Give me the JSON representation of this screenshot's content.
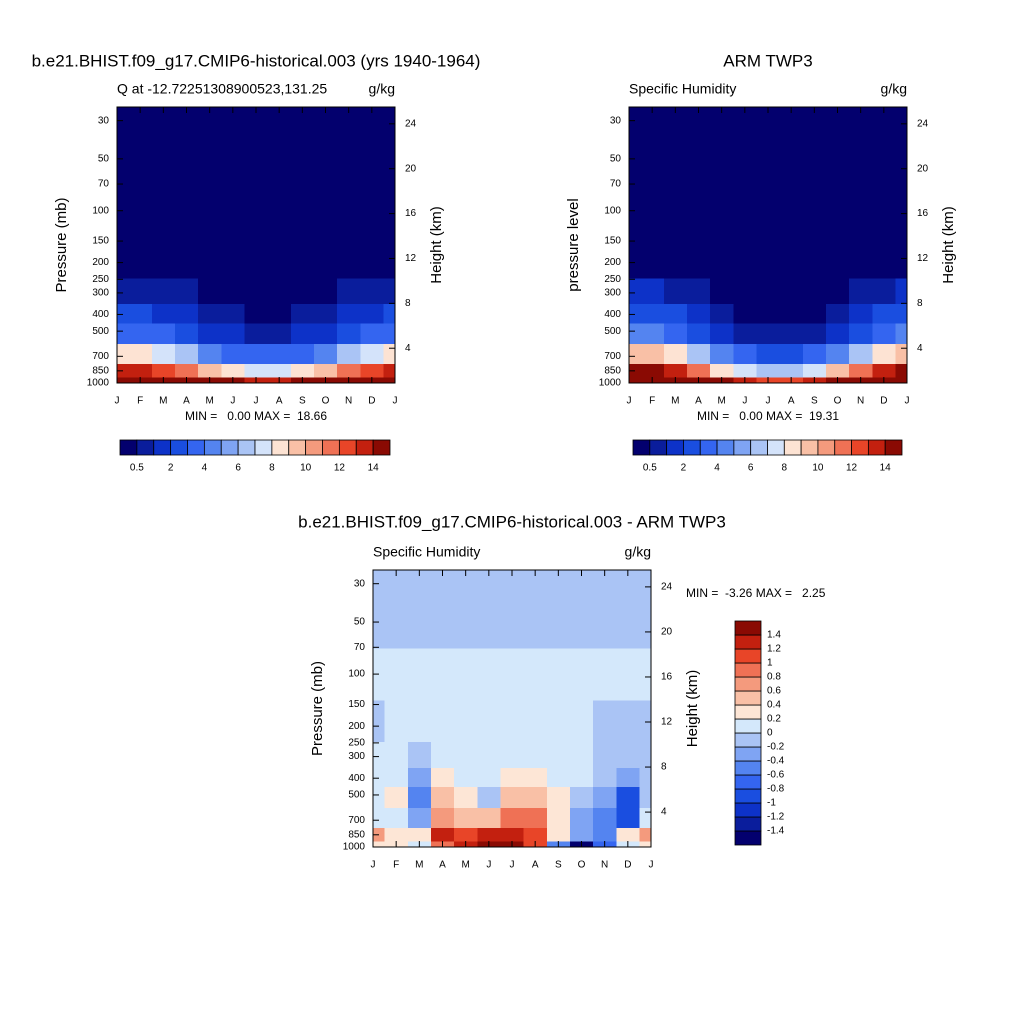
{
  "chart_data": [
    {
      "type": "contour",
      "title": "b.e21.BHIST.f09_g17.CMIP6-historical.003 (yrs 1940-1964)",
      "left_label": "Q at -12.72251308900523,131.25",
      "right_label": "g/kg",
      "ylabel": "Pressure (mb)",
      "y2label": "Height (km)",
      "stats": "MIN =   0.00 MAX =  18.66",
      "categories": [
        "J",
        "F",
        "M",
        "A",
        "M",
        "J",
        "J",
        "A",
        "S",
        "O",
        "N",
        "D",
        "J"
      ],
      "log_y": true,
      "ylim": [
        1000,
        25
      ],
      "yticks": [
        30,
        50,
        70,
        100,
        150,
        200,
        250,
        300,
        400,
        500,
        700,
        850,
        1000
      ],
      "y2lim": [
        0.9,
        25.5
      ],
      "y2ticks": [
        4,
        8,
        12,
        16,
        20,
        24
      ],
      "y": [
        1000,
        850,
        700,
        500,
        400,
        300,
        200,
        100,
        50,
        30
      ],
      "z": [
        [
          17,
          17,
          16.5,
          16,
          15,
          14,
          13.5,
          13.5,
          14,
          15,
          16,
          17,
          17
        ],
        [
          13,
          13,
          12,
          11,
          9,
          8,
          7.5,
          7.5,
          8,
          9.5,
          11,
          12.5,
          13
        ],
        [
          8,
          8,
          7.5,
          6,
          4.5,
          3.5,
          3,
          3,
          3.5,
          4.5,
          6,
          7.5,
          8
        ],
        [
          3.5,
          3.5,
          3.2,
          2.5,
          1.5,
          1,
          0.8,
          0.8,
          1,
          1.5,
          2.5,
          3.2,
          3.5
        ],
        [
          2,
          2,
          1.8,
          1.3,
          0.8,
          0.5,
          0.4,
          0.4,
          0.5,
          0.8,
          1.3,
          1.8,
          2
        ],
        [
          0.9,
          0.9,
          0.8,
          0.6,
          0.4,
          0.25,
          0.2,
          0.2,
          0.25,
          0.35,
          0.6,
          0.8,
          0.9
        ],
        [
          0.15,
          0.15,
          0.15,
          0.1,
          0.1,
          0.08,
          0.06,
          0.06,
          0.08,
          0.1,
          0.1,
          0.15,
          0.15
        ],
        [
          0.01,
          0.01,
          0.01,
          0.01,
          0.01,
          0.01,
          0.01,
          0.01,
          0.01,
          0.01,
          0.01,
          0.01,
          0.01
        ],
        [
          0.01,
          0.01,
          0.01,
          0.01,
          0.01,
          0.01,
          0.01,
          0.01,
          0.01,
          0.01,
          0.01,
          0.01,
          0.01
        ],
        [
          0.01,
          0.01,
          0.01,
          0.01,
          0.01,
          0.01,
          0.01,
          0.01,
          0.01,
          0.01,
          0.01,
          0.01,
          0.01
        ]
      ],
      "colorbar": {
        "orientation": "horizontal",
        "levels": [
          0.5,
          1,
          2,
          3,
          4,
          5,
          6,
          7,
          8,
          9,
          10,
          11,
          12,
          13,
          14
        ],
        "ticks": [
          0.5,
          2,
          4,
          6,
          8,
          10,
          12,
          14
        ],
        "colors": [
          "#03006e",
          "#0a1d9c",
          "#0d32c8",
          "#1a4ee0",
          "#3465f0",
          "#5484f0",
          "#7fa4f3",
          "#aac4f5",
          "#d4e3fa",
          "#fde3d3",
          "#f9c0a6",
          "#f49a7d",
          "#ef7155",
          "#e84528",
          "#c3200f",
          "#8a0a03"
        ]
      }
    },
    {
      "type": "contour",
      "title": "ARM TWP3",
      "left_label": "Specific Humidity",
      "right_label": "g/kg",
      "ylabel": "pressure level",
      "y2label": "Height (km)",
      "stats": "MIN =   0.00 MAX =  19.31",
      "categories": [
        "J",
        "F",
        "M",
        "A",
        "M",
        "J",
        "J",
        "A",
        "S",
        "O",
        "N",
        "D",
        "J"
      ],
      "log_y": true,
      "ylim": [
        1000,
        25
      ],
      "yticks": [
        30,
        50,
        70,
        100,
        150,
        200,
        250,
        300,
        400,
        500,
        700,
        850,
        1000
      ],
      "y2lim": [
        0.9,
        25.5
      ],
      "y2ticks": [
        4,
        8,
        12,
        16,
        20,
        24
      ],
      "y": [
        1000,
        850,
        700,
        500,
        400,
        300,
        200,
        100,
        50,
        30
      ],
      "z": [
        [
          17.5,
          17.5,
          17,
          16,
          14.5,
          13,
          12.5,
          12.5,
          13.5,
          15,
          16.5,
          17.5,
          17.5
        ],
        [
          14,
          14,
          13,
          11,
          8.5,
          7,
          6.5,
          6.5,
          7.5,
          9,
          11,
          13,
          14
        ],
        [
          9,
          9,
          8.5,
          6,
          4,
          3,
          2.5,
          2.5,
          3,
          4,
          6.5,
          8.5,
          9
        ],
        [
          4,
          4,
          3.8,
          2.5,
          1.5,
          0.9,
          0.7,
          0.6,
          0.7,
          1.2,
          2.5,
          3.5,
          4
        ],
        [
          2.2,
          2.2,
          2,
          1.2,
          0.7,
          0.45,
          0.35,
          0.3,
          0.35,
          0.6,
          1.4,
          2,
          2.2
        ],
        [
          1,
          1,
          0.9,
          0.5,
          0.3,
          0.2,
          0.15,
          0.15,
          0.2,
          0.3,
          0.6,
          0.9,
          1
        ],
        [
          0.15,
          0.15,
          0.15,
          0.1,
          0.1,
          0.08,
          0.06,
          0.06,
          0.08,
          0.1,
          0.1,
          0.15,
          0.15
        ],
        [
          0.01,
          0.01,
          0.01,
          0.01,
          0.01,
          0.01,
          0.01,
          0.01,
          0.01,
          0.01,
          0.01,
          0.01,
          0.01
        ],
        [
          0.01,
          0.01,
          0.01,
          0.01,
          0.01,
          0.01,
          0.01,
          0.01,
          0.01,
          0.01,
          0.01,
          0.01,
          0.01
        ],
        [
          0.01,
          0.01,
          0.01,
          0.01,
          0.01,
          0.01,
          0.01,
          0.01,
          0.01,
          0.01,
          0.01,
          0.01,
          0.01
        ]
      ],
      "colorbar": {
        "orientation": "horizontal",
        "levels": [
          0.5,
          1,
          2,
          3,
          4,
          5,
          6,
          7,
          8,
          9,
          10,
          11,
          12,
          13,
          14
        ],
        "ticks": [
          0.5,
          2,
          4,
          6,
          8,
          10,
          12,
          14
        ],
        "colors": [
          "#03006e",
          "#0a1d9c",
          "#0d32c8",
          "#1a4ee0",
          "#3465f0",
          "#5484f0",
          "#7fa4f3",
          "#aac4f5",
          "#d4e3fa",
          "#fde3d3",
          "#f9c0a6",
          "#f49a7d",
          "#ef7155",
          "#e84528",
          "#c3200f",
          "#8a0a03"
        ]
      }
    },
    {
      "type": "contour",
      "title": "b.e21.BHIST.f09_g17.CMIP6-historical.003 - ARM TWP3",
      "left_label": "Specific Humidity",
      "right_label": "g/kg",
      "ylabel": "Pressure (mb)",
      "y2label": "Height (km)",
      "stats": "MIN =  -3.26 MAX =   2.25",
      "categories": [
        "J",
        "F",
        "M",
        "A",
        "M",
        "J",
        "J",
        "A",
        "S",
        "O",
        "N",
        "D",
        "J"
      ],
      "log_y": true,
      "ylim": [
        1000,
        25
      ],
      "yticks": [
        30,
        50,
        70,
        100,
        150,
        200,
        250,
        300,
        400,
        500,
        700,
        850,
        1000
      ],
      "y2lim": [
        0.9,
        25.5
      ],
      "y2ticks": [
        4,
        8,
        12,
        16,
        20,
        24
      ],
      "y": [
        1000,
        850,
        700,
        500,
        400,
        300,
        200,
        100,
        50,
        30
      ],
      "z": [
        [
          0.3,
          0.2,
          0.1,
          0.8,
          1.3,
          1.6,
          1.5,
          1.0,
          -0.5,
          -1.5,
          -0.8,
          0.1,
          0.3
        ],
        [
          0.6,
          0.2,
          0.3,
          1.2,
          1.0,
          1.3,
          1.2,
          1.1,
          0.2,
          -0.4,
          -0.6,
          0.3,
          0.6
        ],
        [
          0.1,
          0.05,
          -0.4,
          0.6,
          0.4,
          0.5,
          0.9,
          0.8,
          0.3,
          -0.3,
          -0.6,
          -0.9,
          0.1
        ],
        [
          0.05,
          0.3,
          -0.6,
          0.5,
          0.3,
          -0.1,
          0.4,
          0.5,
          0.3,
          -0.1,
          -0.4,
          -1.0,
          -0.2
        ],
        [
          0.05,
          0.05,
          -0.3,
          0.3,
          0.1,
          0.05,
          0.2,
          0.2,
          0.1,
          0.05,
          -0.2,
          -0.4,
          -0.1
        ],
        [
          0.05,
          0.05,
          -0.1,
          0.05,
          0.05,
          0.05,
          0.05,
          0.05,
          0.05,
          0.05,
          -0.1,
          -0.2,
          -0.1
        ],
        [
          -0.05,
          0.05,
          0.05,
          0.05,
          0.05,
          0.05,
          0.05,
          0.05,
          0.05,
          0.05,
          -0.05,
          -0.1,
          -0.05
        ],
        [
          0.05,
          0.05,
          0.05,
          0.05,
          0.05,
          0.05,
          0.05,
          0.05,
          0.05,
          0.05,
          0.05,
          0.05,
          0.05
        ],
        [
          -0.05,
          -0.05,
          -0.05,
          -0.05,
          -0.05,
          -0.05,
          -0.05,
          -0.05,
          -0.05,
          -0.05,
          -0.05,
          -0.05,
          -0.05
        ],
        [
          -0.05,
          -0.05,
          -0.05,
          -0.05,
          -0.05,
          -0.05,
          -0.05,
          -0.05,
          -0.05,
          -0.05,
          -0.05,
          -0.05,
          -0.05
        ]
      ],
      "colorbar": {
        "orientation": "vertical",
        "levels": [
          -1.4,
          -1.2,
          -1,
          -0.8,
          -0.6,
          -0.4,
          -0.2,
          0,
          0.2,
          0.4,
          0.6,
          0.8,
          1,
          1.2,
          1.4
        ],
        "ticks": [
          -1.4,
          -1.2,
          -1,
          -0.8,
          -0.6,
          -0.4,
          -0.2,
          0,
          0.2,
          0.4,
          0.6,
          0.8,
          1,
          1.2,
          1.4
        ],
        "colors": [
          "#03006e",
          "#0a1d9c",
          "#0d32c8",
          "#1a4ee0",
          "#3465f0",
          "#5484f0",
          "#7fa4f3",
          "#aac4f5",
          "#d4e8fb",
          "#fde6d6",
          "#f9c0a6",
          "#f49a7d",
          "#ef7155",
          "#e84528",
          "#c3200f",
          "#8a0a03"
        ]
      }
    }
  ]
}
